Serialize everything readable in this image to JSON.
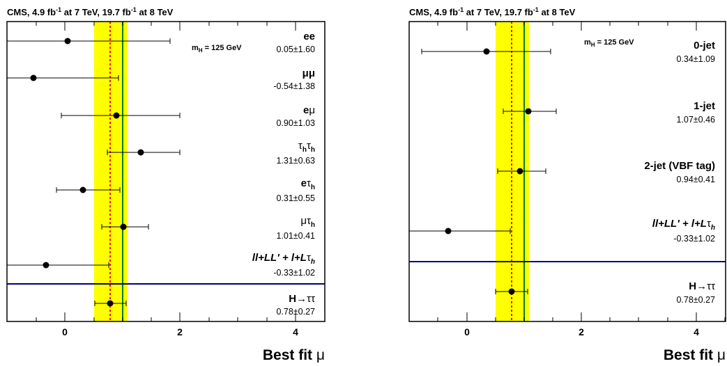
{
  "chart_data": [
    {
      "type": "scatter",
      "header": "CMS, 4.9 fb-1 at 7 TeV, 19.7 fb-1 at 8 TeV",
      "annotation": "mH = 125 GeV",
      "xlabel": "Best fit μ",
      "xlim": [
        -1,
        4.5
      ],
      "xticks": [
        "0",
        "2",
        "4"
      ],
      "band_color": "#ffff00",
      "combined_line_color": "#008000",
      "sm_line_color": "#ff0000",
      "separator_color": "#000080",
      "combined": {
        "label": "H→ττ",
        "value": 0.78,
        "err": 0.27,
        "text": "0.78±0.27",
        "band": [
          0.51,
          1.05
        ]
      },
      "sm_value": 1.0,
      "categories": [
        {
          "label": "ee",
          "value": 0.05,
          "err": 1.6,
          "text": "0.05±1.60"
        },
        {
          "label": "μμ",
          "value": -0.54,
          "err": 1.38,
          "text": "-0.54±1.38"
        },
        {
          "label": "eμ",
          "value": 0.9,
          "err": 1.03,
          "text": "0.90±1.03"
        },
        {
          "label": "τhτh",
          "value": 1.31,
          "err": 0.63,
          "text": "1.31±0.63"
        },
        {
          "label": "eτh",
          "value": 0.31,
          "err": 0.55,
          "text": "0.31±0.55"
        },
        {
          "label": "μτh",
          "value": 1.01,
          "err": 0.41,
          "text": "1.01±0.41"
        },
        {
          "label": "ll+LL' + l+Lτh",
          "value": -0.33,
          "err": 1.02,
          "text": "-0.33±1.02"
        }
      ]
    },
    {
      "type": "scatter",
      "header": "CMS, 4.9 fb-1 at 7 TeV, 19.7 fb-1 at 8 TeV",
      "annotation": "mH = 125 GeV",
      "xlabel": "Best fit μ",
      "xlim": [
        -1,
        4.5
      ],
      "xticks": [
        "0",
        "2",
        "4"
      ],
      "band_color": "#ffff00",
      "combined_line_color": "#008000",
      "sm_line_color": "#ff0000",
      "separator_color": "#000080",
      "combined": {
        "label": "H→ττ",
        "value": 0.78,
        "err": 0.27,
        "text": "0.78±0.27",
        "band": [
          0.51,
          1.05
        ]
      },
      "sm_value": 1.0,
      "categories": [
        {
          "label": "0-jet",
          "value": 0.34,
          "err": 1.09,
          "text": "0.34±1.09"
        },
        {
          "label": "1-jet",
          "value": 1.07,
          "err": 0.46,
          "text": "1.07±0.46"
        },
        {
          "label": "2-jet (VBF tag)",
          "value": 0.94,
          "err": 0.41,
          "text": "0.94±0.41"
        },
        {
          "label": "ll+LL' + l+Lτh",
          "value": -0.33,
          "err": 1.02,
          "text": "-0.33±1.02"
        }
      ]
    }
  ]
}
